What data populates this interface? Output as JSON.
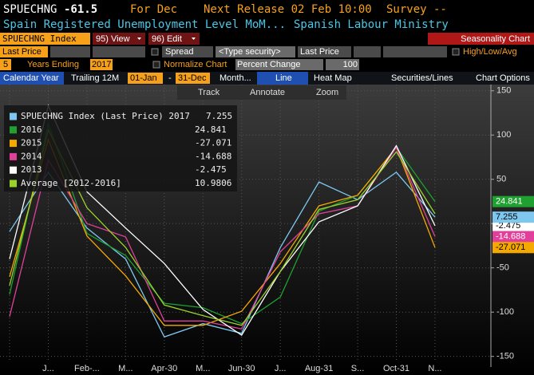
{
  "header": {
    "ticker": "SPUECHNG",
    "price": "-61.5",
    "period": "For Dec",
    "release": "Next Release 02 Feb 10:00",
    "survey": "Survey --",
    "description": "Spain Registered Unemployment Level MoM...",
    "source": "Spanish Labour Ministry"
  },
  "toolbar": {
    "security": "SPUECHNG Index",
    "view": "95) View",
    "edit": "96) Edit",
    "function": "Seasonality Chart"
  },
  "settings": {
    "field": "Last Price",
    "spread": "Spread",
    "security2": "<Type security>",
    "field2": "Last Price",
    "high_low": "High/Low/Avg",
    "years": "5",
    "years_ending": "Years Ending",
    "end_year": "2017",
    "normalize": "Normalize Chart",
    "mode": "Percent Change",
    "base": "100"
  },
  "tabs": {
    "calendar": "Calendar Year",
    "trailing": "Trailing 12M",
    "start": "01-Jan",
    "dash": "-",
    "end": "31-Dec",
    "period": "Month...",
    "line": "Line",
    "heatmap": "Heat Map",
    "securities": "Securities/Lines",
    "options": "Chart Options"
  },
  "chart_tools": [
    "Track",
    "Annotate",
    "Zoom"
  ],
  "chart_data": {
    "type": "line",
    "categories": [
      null,
      "J...",
      "Feb-...",
      "M...",
      "Apr-30",
      "M...",
      "Jun-30",
      "J...",
      "Aug-31",
      "S...",
      "Oct-31",
      "N..."
    ],
    "series": [
      {
        "name": "SPUECHNG Index (Last Price) 2017",
        "color": "#7ec8f0",
        "values": [
          -9,
          58,
          -5,
          -40,
          -128,
          -113,
          -124,
          -27,
          47,
          27,
          58,
          7.255
        ]
      },
      {
        "name": "2016",
        "color": "#1fa030",
        "values": [
          -80,
          113,
          -11,
          -36,
          -90,
          -95,
          -113,
          -83,
          14,
          32,
          86,
          24.841
        ]
      },
      {
        "name": "2015",
        "color": "#f5a800",
        "values": [
          -60,
          95,
          -14,
          -59,
          -115,
          -115,
          -99,
          -45,
          20,
          32,
          86,
          -27.071
        ]
      },
      {
        "name": "2014",
        "color": "#e0409a",
        "values": [
          -105,
          72,
          0,
          -15,
          -110,
          -110,
          -119,
          -32,
          11,
          20,
          86,
          -14.688
        ]
      },
      {
        "name": "2013",
        "color": "#ffffff",
        "values": [
          -40,
          133,
          36,
          -5,
          -45,
          -97,
          -126,
          -54,
          2,
          20,
          88,
          -2.475
        ]
      },
      {
        "name": "Average [2012-2016]",
        "color": "#9bd22a",
        "values": [
          -70,
          106,
          18,
          -27,
          -92,
          -104,
          -115,
          -54,
          16,
          27,
          81,
          10.9806
        ]
      }
    ],
    "ylim": [
      -162,
      157
    ],
    "yticks": [
      150,
      100,
      50,
      0,
      -50,
      -100,
      -150
    ],
    "grid": true,
    "legend": "upper-left"
  }
}
